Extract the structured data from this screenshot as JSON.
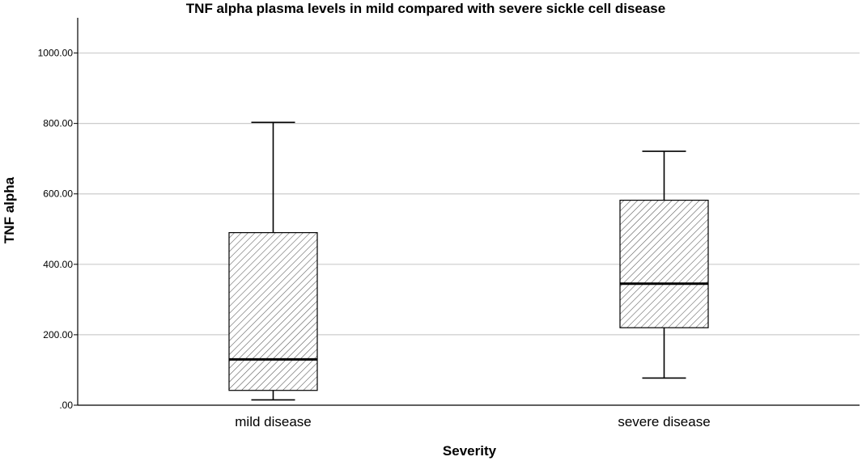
{
  "chart_data": {
    "type": "boxplot",
    "title": "TNF alpha plasma levels in mild compared with severe sickle cell disease",
    "xlabel": "Severity",
    "ylabel": "TNF alpha",
    "ylim": [
      0,
      1100
    ],
    "yticks": [
      0,
      200,
      400,
      600,
      800,
      1000
    ],
    "ytick_labels": [
      ".00",
      "200.00",
      "400.00",
      "600.00",
      "800.00",
      "1000.00"
    ],
    "grid": true,
    "categories": [
      "mild disease",
      "severe disease"
    ],
    "boxes": [
      {
        "name": "mild disease",
        "whisker_low": 15,
        "q1": 42,
        "median": 130,
        "q3": 490,
        "whisker_high": 803
      },
      {
        "name": "severe disease",
        "whisker_low": 77,
        "q1": 220,
        "median": 345,
        "q3": 582,
        "whisker_high": 721
      }
    ],
    "colors": {
      "box_fill": "#ffffff",
      "hatch": "#555555",
      "stroke": "#000000",
      "grid": "#cccccc"
    }
  }
}
